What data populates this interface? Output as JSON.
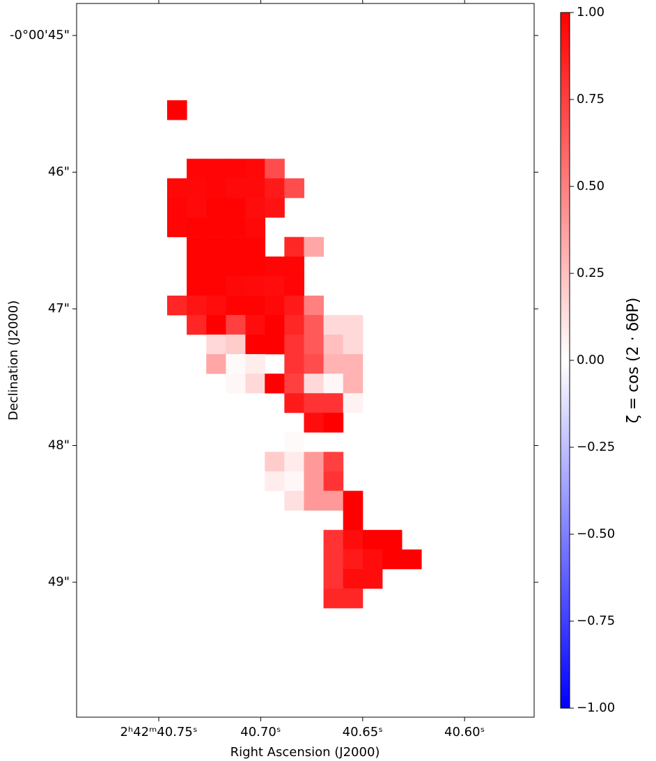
{
  "chart_data": {
    "type": "heatmap",
    "xlabel": "Right Ascension (J2000)",
    "ylabel": "Declination (J2000)",
    "colorbar_label": "ζ = cos (2 · δθP)",
    "xlim": [
      40.7903,
      40.5659
    ],
    "ylim": [
      44.766,
      49.987
    ],
    "xticks": [
      {
        "value": 40.75,
        "label": "2ʰ42ᵐ40.75ˢ"
      },
      {
        "value": 40.7,
        "label": "40.70ˢ"
      },
      {
        "value": 40.65,
        "label": "40.65ˢ"
      },
      {
        "value": 40.6,
        "label": "40.60ˢ"
      }
    ],
    "yticks": [
      {
        "value": 45,
        "label": "-0°00'45\""
      },
      {
        "value": 46,
        "label": "46\""
      },
      {
        "value": 47,
        "label": "47\""
      },
      {
        "value": 48,
        "label": "48\""
      },
      {
        "value": 49,
        "label": "49\""
      }
    ],
    "clim": [
      -1,
      1
    ],
    "colormap": [
      "#0000ff",
      "#ffffff",
      "#ff0000"
    ],
    "cticks": [
      {
        "value": 1,
        "label": "1.00"
      },
      {
        "value": 0.75,
        "label": "0.75"
      },
      {
        "value": 0.5,
        "label": "0.50"
      },
      {
        "value": 0.25,
        "label": "0.25"
      },
      {
        "value": 0,
        "label": "0.00"
      },
      {
        "value": -0.25,
        "label": "−0.25"
      },
      {
        "value": -0.5,
        "label": "−0.50"
      },
      {
        "value": -0.75,
        "label": "−0.75"
      },
      {
        "value": -1,
        "label": "−1.00"
      }
    ],
    "x": [
      40.7411,
      40.7315,
      40.7219,
      40.7123,
      40.7027,
      40.6932,
      40.6836,
      40.674,
      40.6644,
      40.6548,
      40.6452,
      40.6356,
      40.626
    ],
    "y": [
      45.545,
      45.687,
      45.83,
      45.973,
      46.116,
      46.259,
      46.402,
      46.545,
      46.688,
      46.831,
      46.974,
      47.116,
      47.259,
      47.402,
      47.545,
      47.688,
      47.831,
      47.974,
      48.117,
      48.26,
      48.402,
      48.545,
      48.688,
      48.831,
      48.974,
      49.117
    ],
    "z": [
      [
        1.0,
        null,
        null,
        null,
        null,
        null,
        null,
        null,
        null,
        null,
        null,
        null,
        null
      ],
      [
        null,
        null,
        null,
        null,
        null,
        null,
        null,
        null,
        null,
        null,
        null,
        null,
        null
      ],
      [
        null,
        null,
        null,
        null,
        null,
        null,
        null,
        null,
        null,
        null,
        null,
        null,
        null
      ],
      [
        null,
        0.98,
        0.98,
        0.98,
        0.97,
        0.7,
        null,
        null,
        null,
        null,
        null,
        null,
        null
      ],
      [
        0.97,
        0.97,
        0.98,
        0.96,
        0.96,
        0.9,
        0.7,
        null,
        null,
        null,
        null,
        null,
        null
      ],
      [
        0.98,
        0.96,
        0.99,
        0.99,
        0.95,
        0.93,
        null,
        null,
        null,
        null,
        null,
        null,
        null
      ],
      [
        0.98,
        0.99,
        0.99,
        0.99,
        0.97,
        null,
        null,
        null,
        null,
        null,
        null,
        null,
        null
      ],
      [
        null,
        0.99,
        0.99,
        0.99,
        0.99,
        null,
        0.85,
        0.35,
        null,
        null,
        null,
        null,
        null
      ],
      [
        null,
        0.99,
        0.99,
        0.99,
        0.99,
        0.98,
        0.98,
        null,
        null,
        null,
        null,
        null,
        null
      ],
      [
        null,
        0.99,
        0.99,
        0.97,
        0.96,
        0.95,
        0.98,
        null,
        null,
        null,
        null,
        null,
        null
      ],
      [
        0.85,
        0.92,
        0.95,
        0.99,
        0.99,
        0.97,
        0.9,
        0.5,
        null,
        null,
        null,
        null,
        null
      ],
      [
        null,
        0.85,
        1.0,
        0.75,
        0.95,
        1.0,
        0.85,
        0.65,
        0.15,
        0.15,
        null,
        null,
        null
      ],
      [
        null,
        null,
        0.15,
        0.2,
        1.0,
        1.0,
        0.8,
        0.65,
        0.25,
        0.15,
        null,
        null,
        null
      ],
      [
        null,
        null,
        0.35,
        0.02,
        0.07,
        null,
        0.8,
        0.7,
        0.3,
        0.3,
        null,
        null,
        null
      ],
      [
        null,
        null,
        null,
        0.03,
        0.15,
        1.0,
        0.75,
        0.15,
        0.03,
        0.3,
        null,
        null,
        null
      ],
      [
        null,
        null,
        null,
        null,
        null,
        null,
        0.9,
        0.8,
        0.8,
        0.05,
        null,
        null,
        null
      ],
      [
        null,
        null,
        null,
        null,
        null,
        null,
        null,
        0.95,
        1.0,
        null,
        null,
        null,
        null
      ],
      [
        null,
        null,
        null,
        null,
        null,
        null,
        0.02,
        null,
        null,
        null,
        null,
        null,
        null
      ],
      [
        null,
        null,
        null,
        null,
        null,
        0.2,
        0.08,
        0.4,
        0.75,
        null,
        null,
        null,
        null
      ],
      [
        null,
        null,
        null,
        null,
        null,
        0.07,
        0.03,
        0.4,
        0.8,
        null,
        null,
        null,
        null
      ],
      [
        null,
        null,
        null,
        null,
        null,
        null,
        0.12,
        0.4,
        0.4,
        1.0,
        null,
        null,
        null
      ],
      [
        null,
        null,
        null,
        null,
        null,
        null,
        null,
        null,
        null,
        1.0,
        null,
        null,
        null
      ],
      [
        null,
        null,
        null,
        null,
        null,
        null,
        null,
        null,
        0.8,
        0.95,
        1.0,
        1.0,
        null
      ],
      [
        null,
        null,
        null,
        null,
        null,
        null,
        null,
        null,
        0.8,
        0.9,
        0.95,
        1.0,
        1.0
      ],
      [
        null,
        null,
        null,
        null,
        null,
        null,
        null,
        null,
        0.8,
        0.95,
        0.95,
        null,
        null
      ],
      [
        null,
        null,
        null,
        null,
        null,
        null,
        null,
        null,
        0.85,
        0.85,
        null,
        null,
        null
      ]
    ]
  }
}
